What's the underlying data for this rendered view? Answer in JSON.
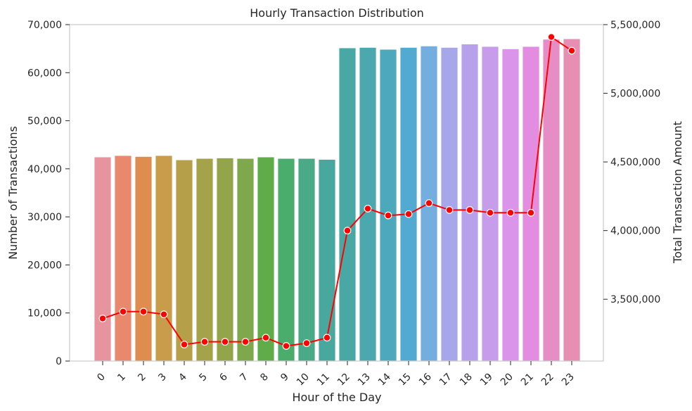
{
  "chart_data": {
    "type": "bar",
    "title": "Hourly Transaction Distribution",
    "xlabel": "Hour of the Day",
    "ylabel": "Number of Transactions",
    "y2label": "Total Transaction Amount",
    "categories": [
      "0",
      "1",
      "2",
      "3",
      "4",
      "5",
      "6",
      "7",
      "8",
      "9",
      "10",
      "11",
      "12",
      "13",
      "14",
      "15",
      "16",
      "17",
      "18",
      "19",
      "20",
      "21",
      "22",
      "23"
    ],
    "ylim": [
      0,
      70000
    ],
    "yticks": [
      0,
      10000,
      20000,
      30000,
      40000,
      50000,
      60000,
      70000
    ],
    "ytick_labels": [
      "0",
      "10,000",
      "20,000",
      "30,000",
      "40,000",
      "50,000",
      "60,000",
      "70,000"
    ],
    "y2lim": [
      3050000,
      5500000
    ],
    "y2ticks": [
      3500000,
      4000000,
      4500000,
      5000000,
      5500000
    ],
    "y2tick_labels": [
      "3,500,000",
      "4,000,000",
      "4,500,000",
      "5,000,000",
      "5,500,000"
    ],
    "grid": false,
    "series": [
      {
        "type": "bar",
        "axis": "left",
        "values": [
          42400,
          42700,
          42500,
          42700,
          41800,
          42100,
          42200,
          42100,
          42400,
          42100,
          42100,
          41900,
          65100,
          65200,
          64800,
          65200,
          65500,
          65200,
          65900,
          65400,
          64900,
          65400,
          66900,
          67000
        ],
        "colors": [
          "#e8949e",
          "#e8896e",
          "#df8c4f",
          "#c89c4a",
          "#b59f48",
          "#a5a34a",
          "#93a44a",
          "#7fa84c",
          "#60ac4a",
          "#4aad6b",
          "#4aaa87",
          "#48a89d",
          "#49a8a3",
          "#4ba8ae",
          "#4ca8ba",
          "#52aad3",
          "#73aedf",
          "#a5a7ea",
          "#b7a1ea",
          "#c79deb",
          "#da95ea",
          "#e38de0",
          "#e68dc6",
          "#e68fb2"
        ]
      },
      {
        "type": "line",
        "axis": "right",
        "color": "#ff0000",
        "values": [
          3360000,
          3410000,
          3410000,
          3390000,
          3170000,
          3190000,
          3190000,
          3190000,
          3220000,
          3160000,
          3180000,
          3220000,
          4000000,
          4160000,
          4110000,
          4120000,
          4200000,
          4150000,
          4150000,
          4130000,
          4130000,
          4130000,
          5410000,
          5310000
        ]
      }
    ]
  }
}
